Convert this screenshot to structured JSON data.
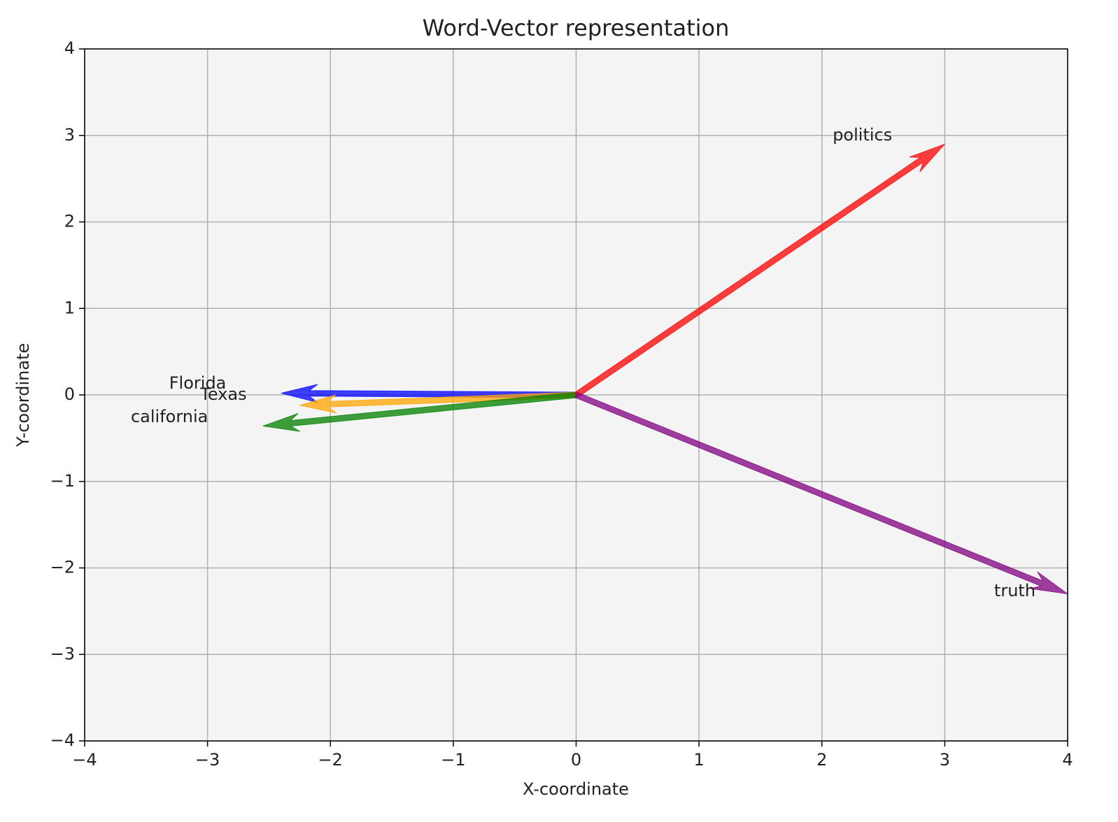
{
  "chart_data": {
    "type": "quiver",
    "title": "Word-Vector representation",
    "x_label": "X-coordinate",
    "y_label": "Y-coordinate",
    "xlim": [
      -4,
      4
    ],
    "ylim": [
      -4,
      4
    ],
    "xticks": [
      {
        "value": -4,
        "label": "−4"
      },
      {
        "value": -3,
        "label": "−3"
      },
      {
        "value": -2,
        "label": "−2"
      },
      {
        "value": -1,
        "label": "−1"
      },
      0,
      1,
      2,
      3,
      4
    ],
    "yticks": [
      {
        "value": -4,
        "label": "−4"
      },
      {
        "value": -3,
        "label": "−3"
      },
      {
        "value": -2,
        "label": "−2"
      },
      {
        "value": -1,
        "label": "−1"
      },
      0,
      1,
      2,
      3,
      4
    ],
    "grid": true,
    "series": [
      {
        "name": "Florida",
        "color": "#0000ff",
        "u": -2.4,
        "v": 0.02,
        "label_x": -3.08,
        "label_y": 0.13
      },
      {
        "name": "Texas",
        "color": "#ffa500",
        "u": -2.25,
        "v": -0.12,
        "label_x": -2.87,
        "label_y": 0.0
      },
      {
        "name": "california",
        "color": "#008000",
        "u": -2.55,
        "v": -0.36,
        "label_x": -3.31,
        "label_y": -0.26
      },
      {
        "name": "politics",
        "color": "#ff0000",
        "u": 3.0,
        "v": 2.9,
        "label_x": 2.33,
        "label_y": 3.0
      },
      {
        "name": "truth",
        "color": "#800080",
        "u": 4.0,
        "v": -2.3,
        "label_x": 3.57,
        "label_y": -2.27
      }
    ]
  }
}
